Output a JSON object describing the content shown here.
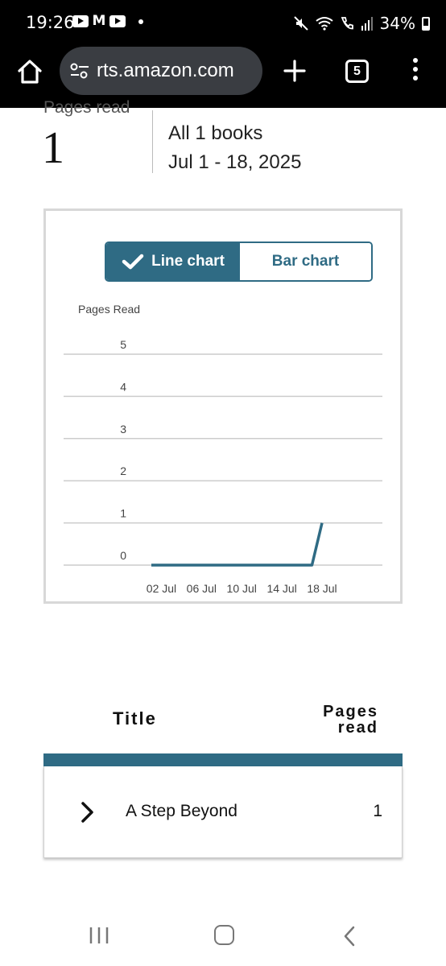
{
  "status_bar": {
    "time": "19:26",
    "battery": "34%",
    "icons": [
      "youtube-icon",
      "gmail-icon",
      "youtube-icon",
      "mute-icon",
      "wifi-icon",
      "wifi-calling-icon",
      "signal-icon",
      "battery-icon"
    ]
  },
  "browser": {
    "url": "rts.amazon.com",
    "tab_count": "5",
    "icons": [
      "home-icon",
      "site-settings-icon",
      "plus-icon",
      "more-menu-icon"
    ]
  },
  "summary": {
    "label": "Pages read",
    "value": "1",
    "books": "All 1 books",
    "dates": "Jul 1 - 18, 2025"
  },
  "chart_toggle": {
    "line_label": "Line chart",
    "bar_label": "Bar chart",
    "selected": "Line chart"
  },
  "chart_data": {
    "type": "line",
    "title": "",
    "xlabel": "",
    "ylabel": "Pages Read",
    "ylim": [
      0,
      5
    ],
    "yticks": [
      "0",
      "1",
      "2",
      "3",
      "4",
      "5"
    ],
    "xtick_labels": [
      "02 Jul",
      "06 Jul",
      "10 Jul",
      "14 Jul",
      "18 Jul"
    ],
    "x_domain": [
      1,
      18
    ],
    "series": [
      {
        "color": "#2f6b84",
        "points": [
          {
            "x": 1,
            "y": 0
          },
          {
            "x": 2,
            "y": 0
          },
          {
            "x": 3,
            "y": 0
          },
          {
            "x": 4,
            "y": 0
          },
          {
            "x": 5,
            "y": 0
          },
          {
            "x": 6,
            "y": 0
          },
          {
            "x": 7,
            "y": 0
          },
          {
            "x": 8,
            "y": 0
          },
          {
            "x": 9,
            "y": 0
          },
          {
            "x": 10,
            "y": 0
          },
          {
            "x": 11,
            "y": 0
          },
          {
            "x": 12,
            "y": 0
          },
          {
            "x": 13,
            "y": 0
          },
          {
            "x": 14,
            "y": 0
          },
          {
            "x": 15,
            "y": 0
          },
          {
            "x": 16,
            "y": 0
          },
          {
            "x": 17,
            "y": 0
          },
          {
            "x": 18,
            "y": 1
          }
        ]
      }
    ],
    "grid": true
  },
  "table": {
    "col_title": "Title",
    "col_pages_line1": "Pages",
    "col_pages_line2": "read",
    "rows": [
      {
        "title": "A Step Beyond",
        "pages": "1"
      }
    ]
  },
  "colors": {
    "accent": "#2f6b84",
    "gridline": "#cccccc",
    "card_border": "#d8d8d8"
  }
}
